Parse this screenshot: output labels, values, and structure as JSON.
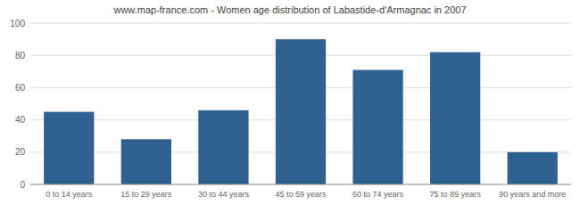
{
  "chart_data": {
    "type": "bar",
    "title": "www.map-france.com - Women age distribution of Labastide-d'Armagnac in 2007",
    "categories": [
      "0 to 14 years",
      "15 to 29 years",
      "30 to 44 years",
      "45 to 59 years",
      "60 to 74 years",
      "75 to 89 years",
      "90 years and more"
    ],
    "values": [
      45,
      28,
      46,
      90,
      71,
      82,
      20
    ],
    "color": "#2e6090",
    "ylim": [
      0,
      100
    ],
    "yticks": [
      0,
      20,
      40,
      60,
      80,
      100
    ],
    "grid": true
  }
}
